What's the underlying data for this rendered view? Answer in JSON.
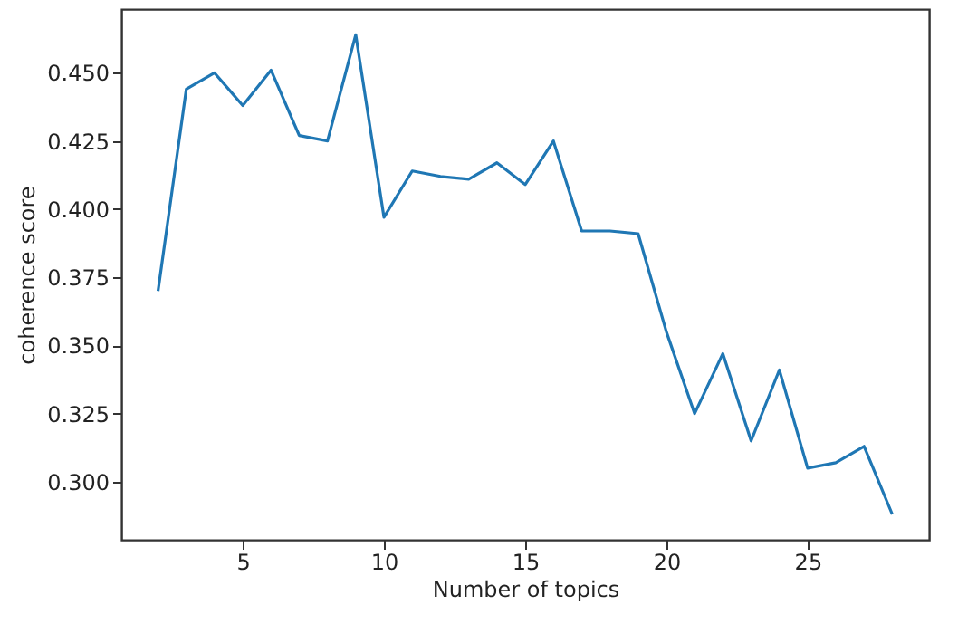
{
  "chart_data": {
    "type": "line",
    "xlabel": "Number of topics",
    "ylabel": "coherence score",
    "x": [
      2,
      3,
      4,
      5,
      6,
      7,
      8,
      9,
      10,
      11,
      12,
      13,
      14,
      15,
      16,
      17,
      18,
      19,
      20,
      21,
      22,
      23,
      24,
      25,
      26,
      27,
      28
    ],
    "series": [
      {
        "color": "#1f77b4",
        "values": [
          0.37,
          0.444,
          0.45,
          0.438,
          0.451,
          0.427,
          0.425,
          0.464,
          0.397,
          0.414,
          0.412,
          0.411,
          0.417,
          0.409,
          0.425,
          0.392,
          0.392,
          0.391,
          0.355,
          0.325,
          0.347,
          0.315,
          0.341,
          0.305,
          0.307,
          0.313,
          0.288
        ]
      }
    ],
    "xlim": [
      0.7,
      29.3
    ],
    "xticks": [
      5,
      10,
      15,
      20,
      25
    ],
    "ylim": [
      0.2787,
      0.4734
    ],
    "yticks": [
      {
        "value": 0.3,
        "label": "0.300"
      },
      {
        "value": 0.325,
        "label": "0.325"
      },
      {
        "value": 0.35,
        "label": "0.350"
      },
      {
        "value": 0.375,
        "label": "0.375"
      },
      {
        "value": 0.4,
        "label": "0.400"
      },
      {
        "value": 0.425,
        "label": "0.425"
      },
      {
        "value": 0.45,
        "label": "0.450"
      }
    ],
    "grid": false,
    "legend": false,
    "marker": "none",
    "line_style": "solid"
  }
}
